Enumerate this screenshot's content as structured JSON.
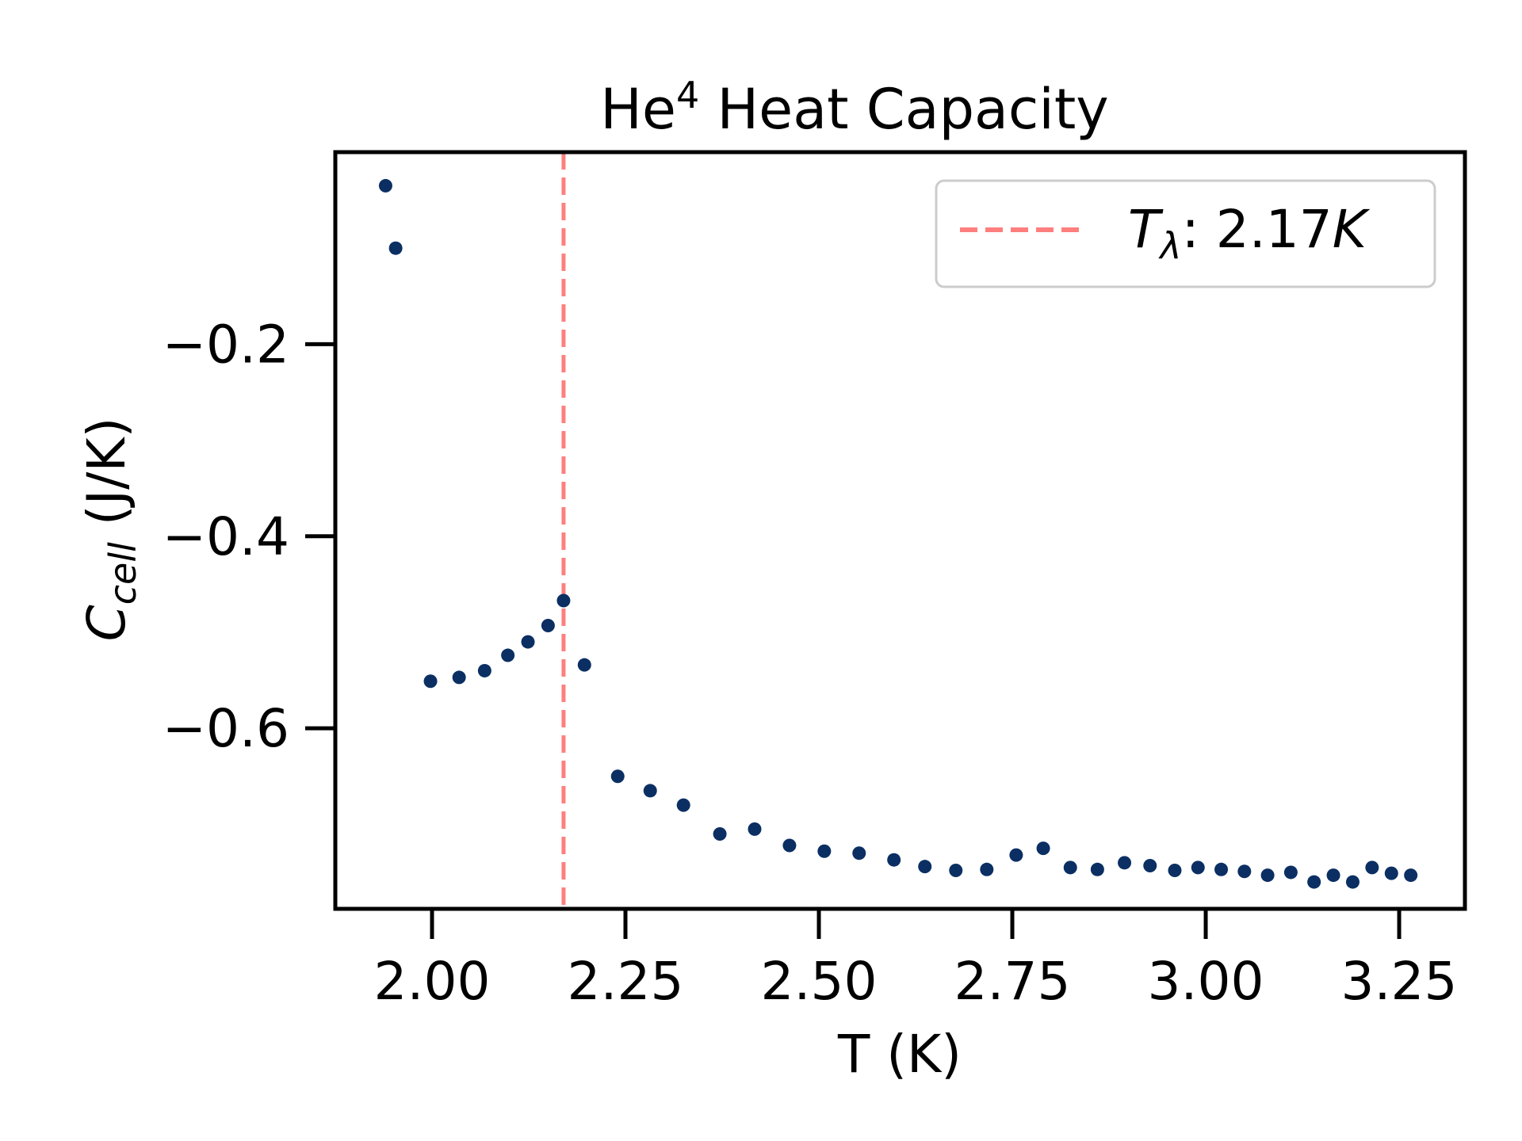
{
  "chart_data": {
    "type": "scatter",
    "title": {
      "prefix": "He",
      "sup": "4",
      "suffix": " Heat Capacity"
    },
    "xlabel": "T (K)",
    "ylabel": {
      "main": "C",
      "sub": "cell",
      "suffix": " (J/K)"
    },
    "xlim": [
      1.875,
      3.335
    ],
    "ylim": [
      -0.788,
      -0.0
    ],
    "xticks": [
      2.0,
      2.25,
      2.5,
      2.75,
      3.0,
      3.25
    ],
    "xtick_labels": [
      "2.00",
      "2.25",
      "2.50",
      "2.75",
      "3.00",
      "3.25"
    ],
    "yticks": [
      -0.2,
      -0.4,
      -0.6
    ],
    "ytick_labels": [
      "−0.2",
      "−0.4",
      "−0.6"
    ],
    "grid": false,
    "series": [
      {
        "name": "C_cell",
        "color": "#0b2f63",
        "x": [
          1.94,
          1.953,
          1.998,
          2.035,
          2.068,
          2.098,
          2.124,
          2.15,
          2.17,
          2.197,
          2.24,
          2.282,
          2.325,
          2.372,
          2.417,
          2.462,
          2.507,
          2.552,
          2.597,
          2.637,
          2.677,
          2.717,
          2.755,
          2.79,
          2.825,
          2.86,
          2.895,
          2.928,
          2.96,
          2.99,
          3.02,
          3.05,
          3.08,
          3.11,
          3.14,
          3.165,
          3.19,
          3.215,
          3.24,
          3.265
        ],
        "y": [
          -0.035,
          -0.1,
          -0.551,
          -0.547,
          -0.54,
          -0.524,
          -0.51,
          -0.493,
          -0.467,
          -0.534,
          -0.65,
          -0.665,
          -0.68,
          -0.71,
          -0.705,
          -0.722,
          -0.728,
          -0.73,
          -0.737,
          -0.744,
          -0.748,
          -0.747,
          -0.732,
          -0.725,
          -0.745,
          -0.747,
          -0.74,
          -0.743,
          -0.748,
          -0.745,
          -0.747,
          -0.749,
          -0.753,
          -0.75,
          -0.76,
          -0.753,
          -0.76,
          -0.745,
          -0.751,
          -0.753
        ]
      }
    ],
    "reference_line": {
      "orientation": "vertical",
      "x": 2.17,
      "color": "#ff7f7f",
      "style": "dashed"
    },
    "legend": {
      "placement": "top-right",
      "entries": [
        {
          "symbol": "T",
          "subscript": "λ",
          "text": ": 2.17",
          "unit": "K",
          "style": "dashed",
          "color": "#ff7f7f"
        }
      ]
    }
  }
}
